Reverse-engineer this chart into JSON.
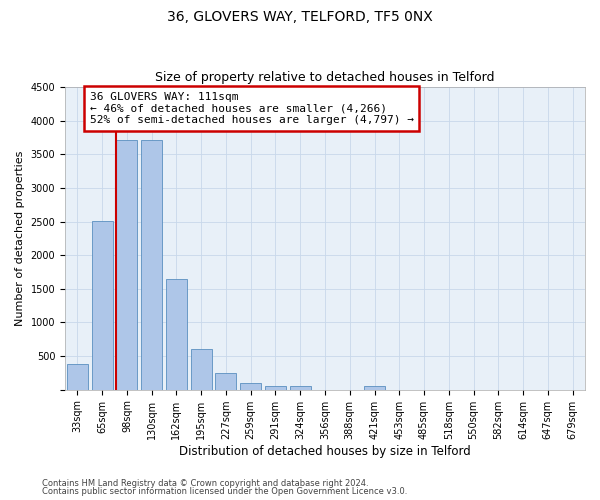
{
  "title_line1": "36, GLOVERS WAY, TELFORD, TF5 0NX",
  "title_line2": "Size of property relative to detached houses in Telford",
  "xlabel": "Distribution of detached houses by size in Telford",
  "ylabel": "Number of detached properties",
  "categories": [
    "33sqm",
    "65sqm",
    "98sqm",
    "130sqm",
    "162sqm",
    "195sqm",
    "227sqm",
    "259sqm",
    "291sqm",
    "324sqm",
    "356sqm",
    "388sqm",
    "421sqm",
    "453sqm",
    "485sqm",
    "518sqm",
    "550sqm",
    "582sqm",
    "614sqm",
    "647sqm",
    "679sqm"
  ],
  "values": [
    380,
    2510,
    3720,
    3720,
    1640,
    600,
    245,
    100,
    60,
    50,
    0,
    0,
    60,
    0,
    0,
    0,
    0,
    0,
    0,
    0,
    0
  ],
  "bar_color": "#aec6e8",
  "bar_edge_color": "#5a8fc0",
  "annotation_text": "36 GLOVERS WAY: 111sqm\n← 46% of detached houses are smaller (4,266)\n52% of semi-detached houses are larger (4,797) →",
  "annotation_box_color": "#ffffff",
  "annotation_box_edge_color": "#cc0000",
  "red_line_index": 2,
  "ylim": [
    0,
    4500
  ],
  "yticks": [
    0,
    500,
    1000,
    1500,
    2000,
    2500,
    3000,
    3500,
    4000,
    4500
  ],
  "footer_line1": "Contains HM Land Registry data © Crown copyright and database right 2024.",
  "footer_line2": "Contains public sector information licensed under the Open Government Licence v3.0.",
  "bg_color": "#ffffff",
  "plot_bg_color": "#e8f0f8",
  "grid_color": "#c8d8ea",
  "title_fontsize": 10,
  "subtitle_fontsize": 9,
  "tick_fontsize": 7,
  "ylabel_fontsize": 8,
  "xlabel_fontsize": 8.5,
  "annotation_fontsize": 8,
  "footer_fontsize": 6
}
